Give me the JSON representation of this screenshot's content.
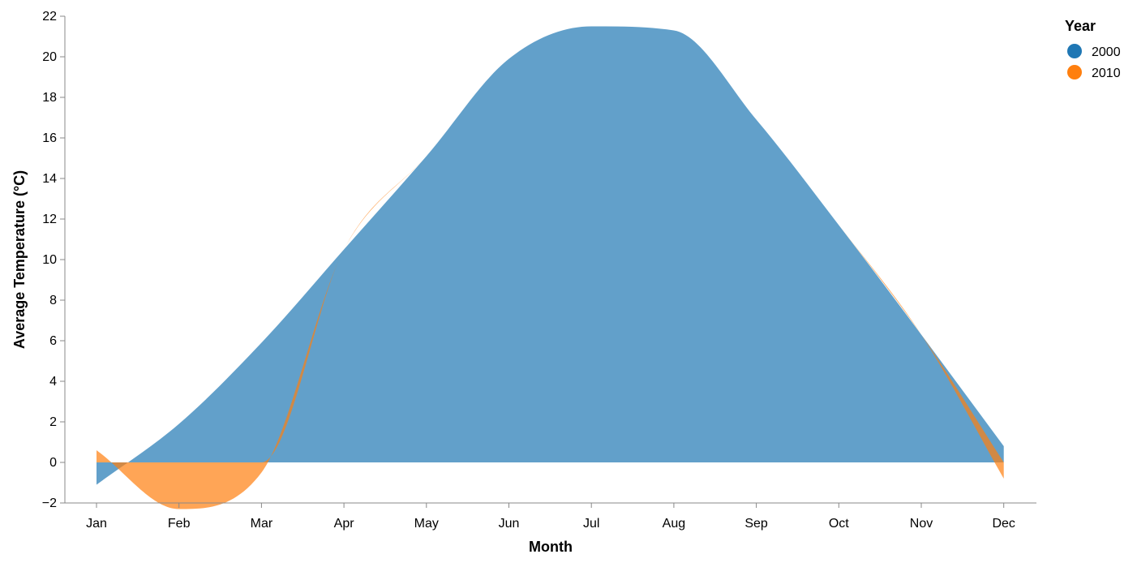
{
  "chart_data": {
    "type": "area",
    "stacked": true,
    "interpolation": "monotone",
    "title": "",
    "xlabel": "Month",
    "ylabel": "Average Temperature (°C)",
    "categories": [
      "Jan",
      "Feb",
      "Mar",
      "Apr",
      "May",
      "Jun",
      "Jul",
      "Aug",
      "Sep",
      "Oct",
      "Nov",
      "Dec"
    ],
    "ylim": [
      -2,
      22
    ],
    "yticks": [
      -2,
      0,
      2,
      4,
      6,
      8,
      10,
      12,
      14,
      16,
      18,
      20,
      22
    ],
    "grid": false,
    "legend": {
      "title": "Year",
      "position": "top-right"
    },
    "series": [
      {
        "name": "2000",
        "color": "#1f77b4",
        "values": [
          -1.1,
          1.9,
          5.9,
          10.5,
          15.1,
          19.9,
          21.5,
          21.3,
          16.9,
          11.7,
          6.3,
          0.8
        ]
      },
      {
        "name": "2010",
        "color": "#ff7f0e",
        "values": [
          0.6,
          -2.3,
          -0.5,
          0.0,
          0.0,
          0.0,
          0.0,
          0.0,
          0.0,
          0.0,
          0.0,
          -0.8
        ]
      }
    ],
    "area_opacity": 0.7
  }
}
